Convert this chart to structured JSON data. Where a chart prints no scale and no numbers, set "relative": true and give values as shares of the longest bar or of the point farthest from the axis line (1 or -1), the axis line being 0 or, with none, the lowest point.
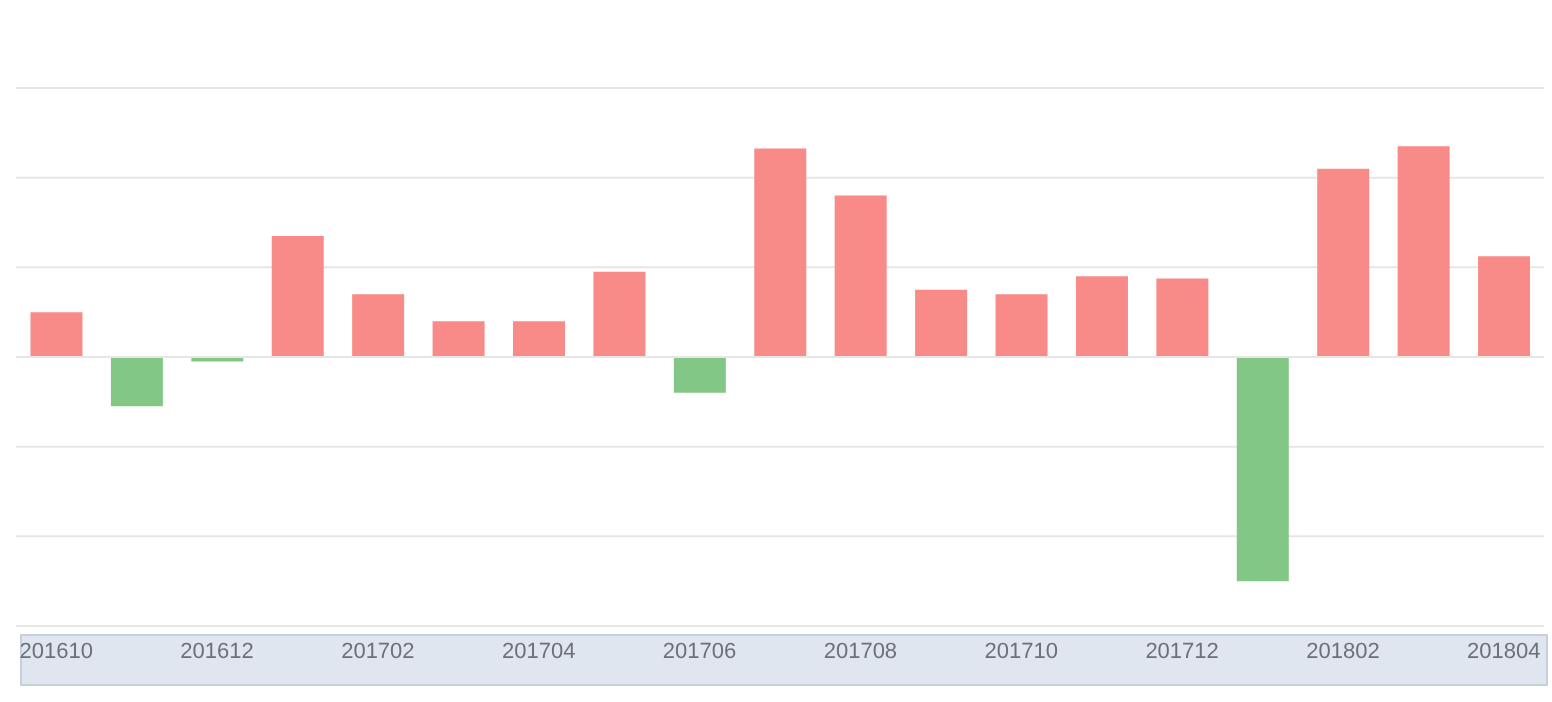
{
  "chart_data": {
    "type": "bar",
    "relative": true,
    "categories": [
      "201610",
      null,
      "201612",
      null,
      "201702",
      null,
      "201704",
      null,
      "201706",
      null,
      "201708",
      null,
      "201710",
      null,
      "201712",
      null,
      "201802",
      null,
      "201804"
    ],
    "values": [
      0.2,
      -0.22,
      -0.02,
      0.54,
      0.28,
      0.16,
      0.16,
      0.38,
      -0.16,
      0.93,
      0.72,
      0.3,
      0.28,
      0.36,
      0.35,
      -1,
      0.84,
      0.94,
      0.45
    ],
    "colors": [
      "#f88a87",
      "#82c786",
      "#82c786",
      "#f88a87",
      "#f88a87",
      "#f88a87",
      "#f88a87",
      "#f88a87",
      "#82c786",
      "#f88a87",
      "#f88a87",
      "#f88a87",
      "#f88a87",
      "#f88a87",
      "#f88a87",
      "#82c786",
      "#f88a87",
      "#f88a87",
      "#f88a87"
    ],
    "grid": "y"
  }
}
